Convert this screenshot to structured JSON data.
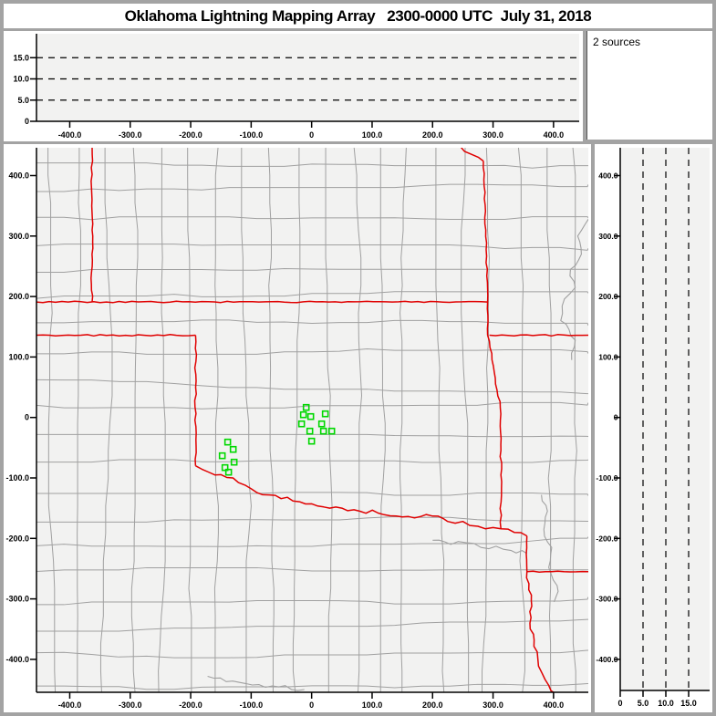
{
  "window": {
    "title": "Oklahoma Lightning Mapping Array   2300-0000 UTC  July 31, 2018"
  },
  "sources_box": {
    "label": "2 sources"
  },
  "colors": {
    "frame": "#a3a3a3",
    "panel_bg": "#ffffff",
    "plot_bg": "#f2f2f1",
    "county_line": "#a0a0a0",
    "river_line": "#a0a0a0",
    "state_line": "#e00000",
    "station": "#00d800",
    "axis": "#000000"
  },
  "axes": {
    "ew": {
      "tick_values": [
        -400,
        -300,
        -200,
        -100,
        0,
        100,
        200,
        300,
        400
      ],
      "tick_labels": [
        "-400.0",
        "-300.0",
        "-200.0",
        "-100.0",
        "0",
        "100.0",
        "200.0",
        "300.0",
        "400.0"
      ]
    },
    "ns": {
      "tick_values": [
        400,
        300,
        200,
        100,
        0,
        -100,
        -200,
        -300,
        -400
      ],
      "tick_labels": [
        "400.0",
        "300.0",
        "200.0",
        "100.0",
        "0",
        "-100.0",
        "-200.0",
        "-300.0",
        "-400.0"
      ]
    },
    "alt": {
      "tick_values": [
        0,
        5,
        10,
        15
      ],
      "tick_labels": [
        "0",
        "5.0",
        "10.0",
        "15.0"
      ],
      "gridlines": [
        5,
        10,
        15
      ]
    }
  },
  "chart_data": {
    "type": "scatter",
    "title": "Oklahoma Lightning Mapping Array",
    "time_range_utc": "2300-0000 UTC",
    "date": "July 31, 2018",
    "source_count": 2,
    "annotations": [
      "2 sources"
    ],
    "units": "km",
    "panels": [
      {
        "id": "altitude-vs-east-west",
        "position": "top",
        "xlim": [
          -455,
          440
        ],
        "ylim": [
          0,
          20.5
        ],
        "grid_y_km": [
          5,
          10,
          15
        ],
        "points": []
      },
      {
        "id": "plan-view-map",
        "position": "main",
        "xlim": [
          -455,
          458
        ],
        "ylim": [
          -454,
          446
        ],
        "points": [],
        "station_markers_km": [
          [
            -9.0,
            16.6
          ],
          [
            -13.6,
            4.5
          ],
          [
            -1.5,
            1.5
          ],
          [
            22.6,
            6.0
          ],
          [
            -16.6,
            -10.6
          ],
          [
            16.6,
            -10.6
          ],
          [
            -3.0,
            -22.6
          ],
          [
            19.6,
            -22.6
          ],
          [
            33.2,
            -22.6
          ],
          [
            0.0,
            -39.2
          ],
          [
            -138.8,
            -40.7
          ],
          [
            -129.7,
            -52.8
          ],
          [
            -147.8,
            -63.3
          ],
          [
            -128.2,
            -73.9
          ],
          [
            -143.3,
            -82.9
          ],
          [
            -137.3,
            -90.5
          ]
        ]
      },
      {
        "id": "altitude-vs-north-south",
        "position": "right",
        "xlim": [
          0,
          19.6
        ],
        "ylim": [
          -451,
          446
        ],
        "grid_x_km": [
          5,
          10,
          15
        ],
        "points": []
      }
    ],
    "map_features": {
      "state_borders_km": [
        {
          "a": 0.8,
          "p": [
            [
              -363,
              446
            ],
            [
              -364,
              380
            ],
            [
              -362,
              300
            ],
            [
              -364,
              240
            ],
            [
              -363,
              191
            ]
          ]
        },
        {
          "a": 0.8,
          "p": [
            [
              -455,
              191
            ],
            [
              291,
              191
            ]
          ]
        },
        {
          "a": 2.0,
          "p": [
            [
              246,
              448
            ],
            [
              262,
              436
            ],
            [
              276,
              430
            ],
            [
              284,
              424
            ]
          ]
        },
        {
          "a": 0.8,
          "p": [
            [
              284,
              424
            ],
            [
              288,
              310
            ],
            [
              291,
              191
            ],
            [
              291,
              136
            ]
          ]
        },
        {
          "a": 0.8,
          "p": [
            [
              -455,
              136
            ],
            [
              -192,
              136
            ]
          ]
        },
        {
          "a": 1.0,
          "p": [
            [
              -192,
              136
            ],
            [
              -192,
              -80
            ]
          ]
        },
        {
          "a": 0.8,
          "p": [
            [
              294,
              136
            ],
            [
              458,
              136
            ]
          ]
        },
        {
          "a": 1.0,
          "p": [
            [
              291,
              136
            ],
            [
              302,
              75
            ],
            [
              312,
              16
            ],
            [
              313,
              -95
            ],
            [
              313,
              -184
            ]
          ]
        },
        {
          "a": 2.5,
          "p": [
            [
              -192,
              -80
            ],
            [
              -160,
              -95
            ],
            [
              -130,
              -100
            ],
            [
              -100,
              -118
            ],
            [
              -70,
              -128
            ],
            [
              -40,
              -132
            ],
            [
              -10,
              -143
            ],
            [
              20,
              -148
            ],
            [
              50,
              -150
            ],
            [
              80,
              -155
            ],
            [
              110,
              -158
            ],
            [
              140,
              -163
            ],
            [
              170,
              -166
            ],
            [
              200,
              -163
            ],
            [
              225,
              -172
            ],
            [
              250,
              -172
            ],
            [
              275,
              -180
            ],
            [
              300,
              -182
            ],
            [
              313,
              -184
            ],
            [
              335,
              -190
            ],
            [
              356,
              -196
            ]
          ]
        },
        {
          "a": 1.0,
          "p": [
            [
              356,
              -196
            ],
            [
              356,
              -255
            ]
          ]
        },
        {
          "a": 0.8,
          "p": [
            [
              356,
              -255
            ],
            [
              458,
              -255
            ]
          ]
        },
        {
          "a": 2.0,
          "p": [
            [
              356,
              -255
            ],
            [
              359,
              -285
            ],
            [
              364,
              -312
            ],
            [
              361,
              -340
            ],
            [
              368,
              -368
            ],
            [
              374,
              -398
            ],
            [
              381,
              -423
            ],
            [
              392,
              -443
            ],
            [
              404,
              -457
            ]
          ]
        }
      ],
      "rivers_km": [
        {
          "p": [
            [
              200,
              -203
            ],
            [
              230,
              -210
            ],
            [
              255,
              -207
            ],
            [
              280,
              -215
            ],
            [
              305,
              -213
            ],
            [
              330,
              -220
            ],
            [
              356,
              -225
            ]
          ]
        },
        {
          "p": [
            [
              380,
              -128
            ],
            [
              390,
              -155
            ],
            [
              384,
              -185
            ],
            [
              397,
              -215
            ],
            [
              392,
              -248
            ],
            [
              406,
              -278
            ],
            [
              401,
              -305
            ]
          ]
        },
        {
          "p": [
            [
              459,
              330
            ],
            [
              440,
              300
            ],
            [
              446,
              270
            ],
            [
              428,
              245
            ],
            [
              436,
              215
            ],
            [
              418,
              196
            ],
            [
              412,
              160
            ],
            [
              436,
              128
            ],
            [
              430,
              95
            ]
          ]
        },
        {
          "p": [
            [
              -172,
              -428
            ],
            [
              -120,
              -438
            ],
            [
              -65,
              -444
            ],
            [
              -12,
              -450
            ]
          ]
        }
      ]
    }
  }
}
